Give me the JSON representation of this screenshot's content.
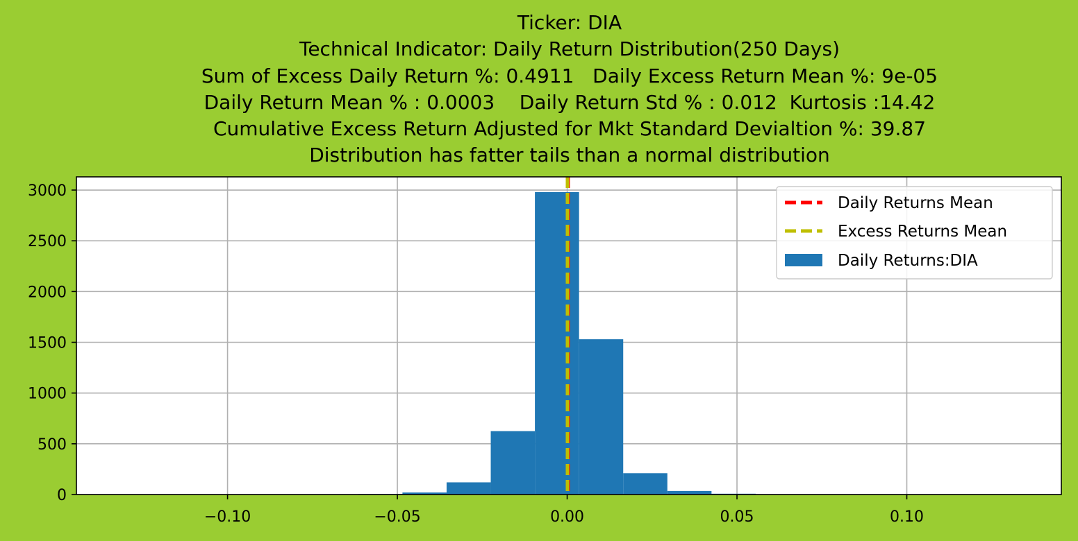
{
  "chart_data": {
    "type": "bar",
    "title_lines": [
      "Ticker: DIA",
      "Technical Indicator: Daily Return Distribution(250 Days)",
      "Sum of Excess Daily Return %: 0.4911   Daily Excess Return Mean %: 9e-05",
      "Daily Return Mean % : 0.0003    Daily Return Std % : 0.012  Kurtosis :14.42",
      "Cumulative Excess Return Adjusted for Mkt Standard Devialtion %: 39.87",
      "Distribution has fatter tails than a normal distribution"
    ],
    "xlim": [
      -0.1445,
      0.1455
    ],
    "ylim": [
      0,
      3130
    ],
    "x_ticks": [
      -0.1,
      -0.05,
      0.0,
      0.05,
      0.1
    ],
    "x_tick_labels": [
      "−0.10",
      "−0.05",
      "0.00",
      "0.05",
      "0.10"
    ],
    "y_ticks": [
      0,
      500,
      1000,
      1500,
      2000,
      2500,
      3000
    ],
    "y_tick_labels": [
      "0",
      "500",
      "1000",
      "1500",
      "2000",
      "2500",
      "3000"
    ],
    "grid": true,
    "legend_position": "top-right",
    "histogram": {
      "name": "Daily Returns:DIA",
      "color": "#1f77b4",
      "bins": [
        {
          "x0": -0.0615,
          "x1": -0.0485,
          "count": 5
        },
        {
          "x0": -0.0485,
          "x1": -0.0355,
          "count": 20
        },
        {
          "x0": -0.0355,
          "x1": -0.0225,
          "count": 120
        },
        {
          "x0": -0.0225,
          "x1": -0.0095,
          "count": 625
        },
        {
          "x0": -0.0095,
          "x1": 0.0035,
          "count": 2980
        },
        {
          "x0": 0.0035,
          "x1": 0.0165,
          "count": 1530
        },
        {
          "x0": 0.0165,
          "x1": 0.0295,
          "count": 210
        },
        {
          "x0": 0.0295,
          "x1": 0.0425,
          "count": 35
        },
        {
          "x0": 0.0425,
          "x1": 0.0555,
          "count": 8
        }
      ]
    },
    "vlines": [
      {
        "name": "Daily Returns Mean",
        "x": 0.0003,
        "color": "#ff0000",
        "style": "dashed"
      },
      {
        "name": "Excess Returns Mean",
        "x": 9e-05,
        "color": "#bfbf00",
        "style": "dashed"
      }
    ]
  }
}
